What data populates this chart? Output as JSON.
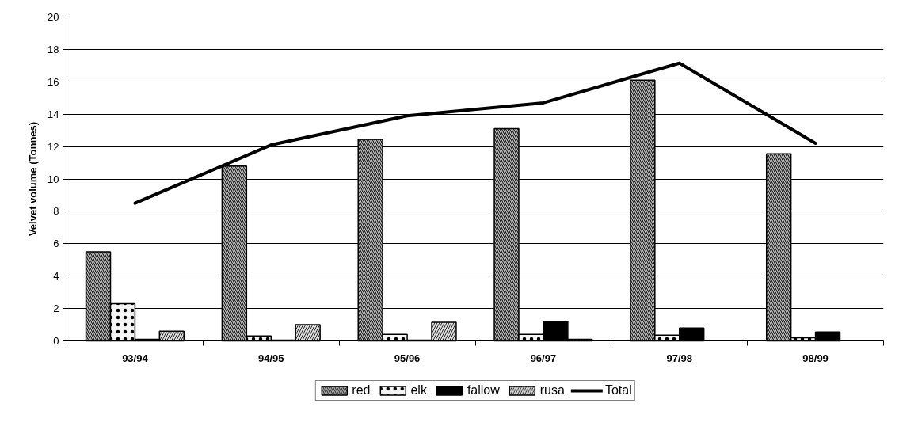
{
  "chart_data": {
    "type": "bar",
    "ylabel": "Velvet volume (Tonnes)",
    "categories": [
      "93/94",
      "94/95",
      "95/96",
      "96/97",
      "97/98",
      "98/99"
    ],
    "series": [
      {
        "name": "red",
        "color": "#c0c0c0",
        "values": [
          5.5,
          10.8,
          12.45,
          13.1,
          16.1,
          11.55
        ]
      },
      {
        "name": "elk",
        "color": "#f5f5f5",
        "values": [
          2.3,
          0.3,
          0.4,
          0.4,
          0.35,
          0.2
        ]
      },
      {
        "name": "fallow",
        "color": "#000000",
        "values": [
          0.1,
          0.05,
          0.05,
          1.2,
          0.8,
          0.55
        ]
      },
      {
        "name": "rusa",
        "color": "#dcdcdc",
        "values": [
          0.6,
          1.0,
          1.15,
          0.1,
          null,
          null
        ]
      },
      {
        "name": "Total",
        "type": "line",
        "color": "#000000",
        "values": [
          8.5,
          12.1,
          13.9,
          14.7,
          17.15,
          12.2
        ]
      }
    ],
    "ylim": [
      0,
      20
    ],
    "yticks": [
      0,
      2,
      4,
      6,
      8,
      10,
      12,
      14,
      16,
      18,
      20
    ],
    "grid": "y",
    "legend": "bottom"
  }
}
